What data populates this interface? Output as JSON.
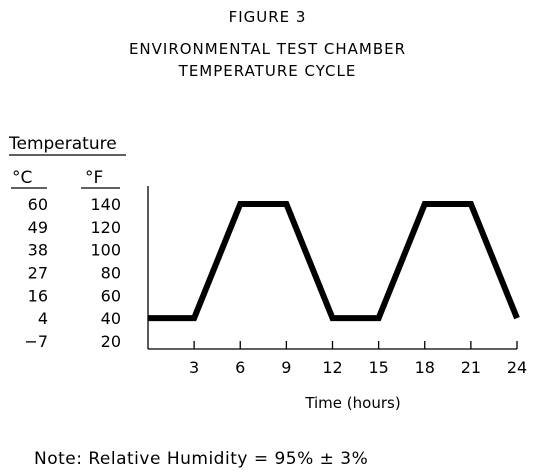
{
  "figure_label": "FIGURE 3",
  "title_line1": "ENVIRONMENTAL TEST CHAMBER",
  "title_line2": "TEMPERATURE CYCLE",
  "note": "Note:  Relative Humidity = 95% ± 3%",
  "chart_data": {
    "type": "line",
    "title": "ENVIRONMENTAL TEST CHAMBER TEMPERATURE CYCLE",
    "xlabel": "Time (hours)",
    "ylabel": "Temperature",
    "y_units": [
      "°C",
      "°F"
    ],
    "x_ticks": [
      "3",
      "6",
      "9",
      "12",
      "15",
      "18",
      "21",
      "24"
    ],
    "y_ticks_c": [
      "60",
      "49",
      "38",
      "27",
      "16",
      "4",
      "−7"
    ],
    "y_ticks_f": [
      "140",
      "120",
      "100",
      "80",
      "60",
      "40",
      "20"
    ],
    "xlim": [
      0,
      24
    ],
    "ylim_f": [
      20,
      150
    ],
    "grid": false,
    "series": [
      {
        "x": [
          0,
          3,
          6,
          9,
          12,
          15,
          18,
          21,
          24
        ],
        "y": [
          40,
          40,
          140,
          140,
          40,
          40,
          140,
          140,
          40
        ]
      }
    ]
  }
}
